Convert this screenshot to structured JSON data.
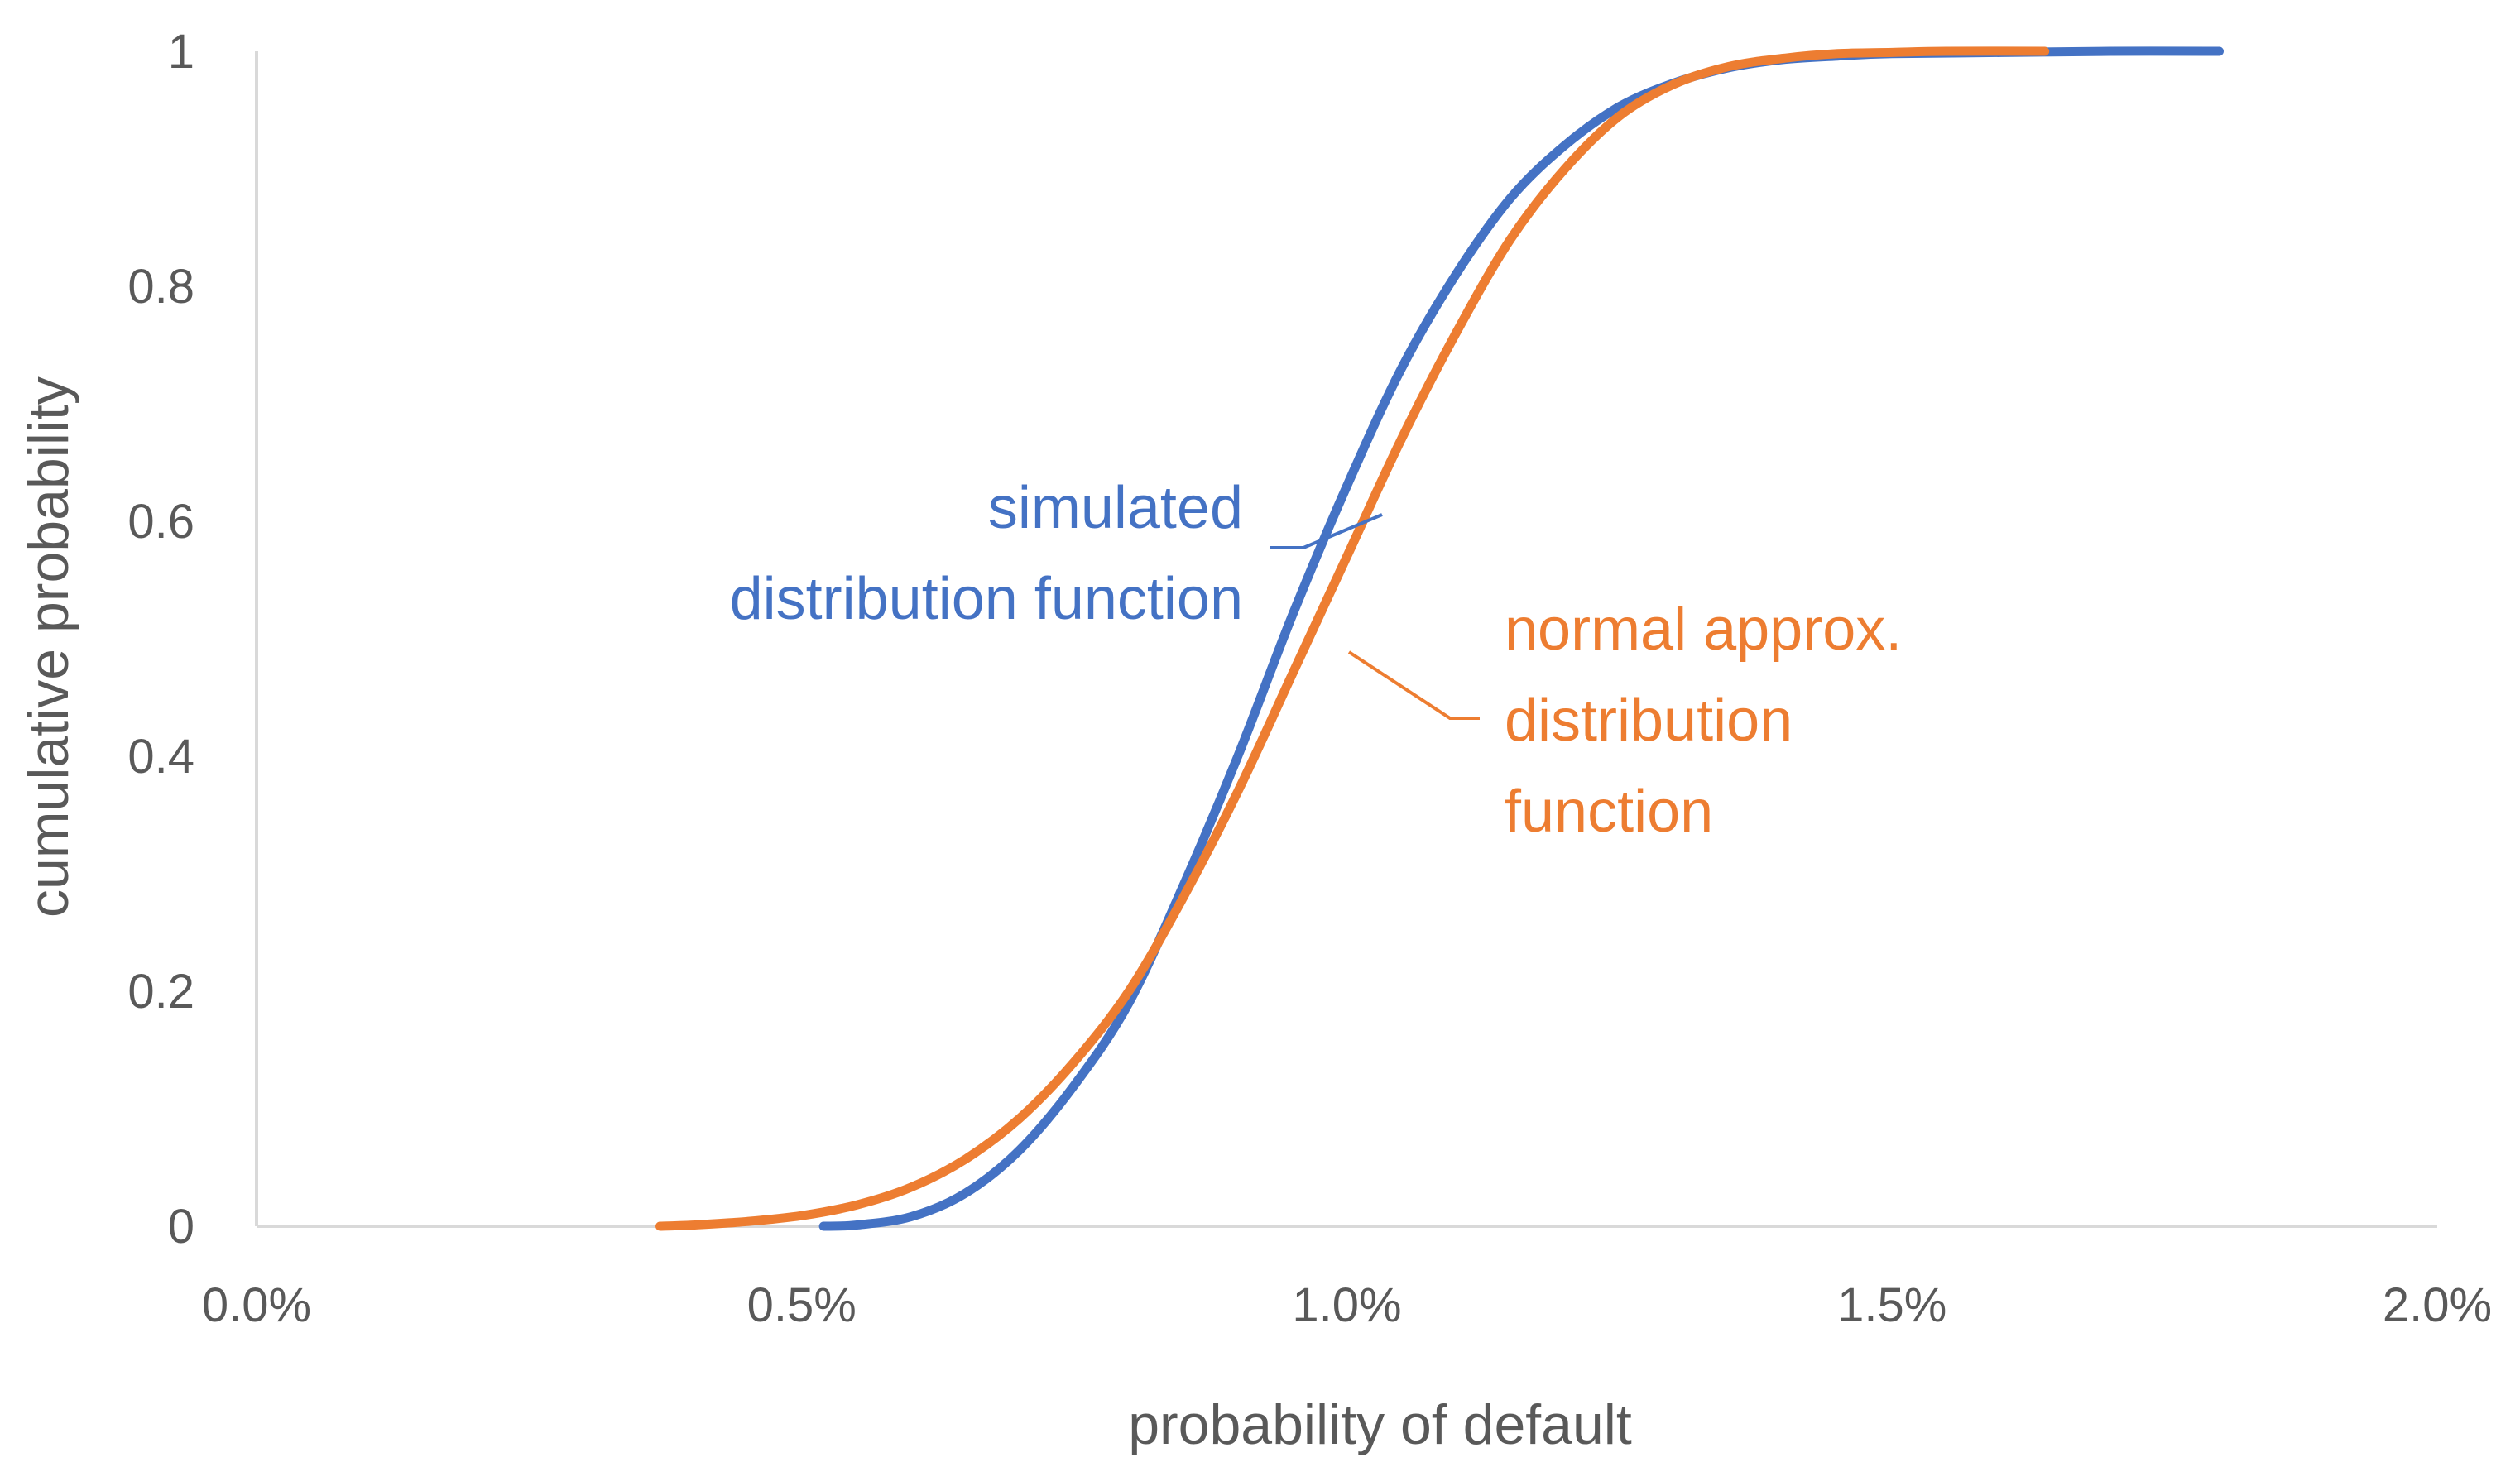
{
  "chart_data": {
    "type": "line",
    "title": "",
    "xlabel": "probability of default",
    "ylabel": "cumulative probability",
    "xlim": [
      0,
      0.02
    ],
    "ylim": [
      0,
      1
    ],
    "x_ticks": [
      0,
      0.005,
      0.01,
      0.015,
      0.02
    ],
    "x_tick_labels": [
      "0.0%",
      "0.5%",
      "1.0%",
      "1.5%",
      "2.0%"
    ],
    "y_ticks": [
      0,
      0.2,
      0.4,
      0.6,
      0.8,
      1
    ],
    "y_tick_labels": [
      "0",
      "0.2",
      "0.4",
      "0.6",
      "0.8",
      "1"
    ],
    "grid": false,
    "legend": "none",
    "series": [
      {
        "name": "simulated distribution function",
        "color": "#4472C4",
        "points": [
          [
            0.0052,
            0.0
          ],
          [
            0.0055,
            0.001
          ],
          [
            0.006,
            0.008
          ],
          [
            0.0065,
            0.028
          ],
          [
            0.007,
            0.065
          ],
          [
            0.0075,
            0.12
          ],
          [
            0.008,
            0.19
          ],
          [
            0.0085,
            0.29
          ],
          [
            0.009,
            0.4
          ],
          [
            0.0095,
            0.52
          ],
          [
            0.01,
            0.63
          ],
          [
            0.0105,
            0.73
          ],
          [
            0.011,
            0.81
          ],
          [
            0.0115,
            0.875
          ],
          [
            0.012,
            0.92
          ],
          [
            0.0125,
            0.953
          ],
          [
            0.013,
            0.973
          ],
          [
            0.0135,
            0.986
          ],
          [
            0.014,
            0.993
          ],
          [
            0.0145,
            0.996
          ],
          [
            0.015,
            0.998
          ],
          [
            0.016,
            0.999
          ],
          [
            0.017,
            1.0
          ],
          [
            0.018,
            1.0
          ]
        ]
      },
      {
        "name": "normal approx. distribution function",
        "color": "#ED7D31",
        "points": [
          [
            0.0037,
            0.0
          ],
          [
            0.004,
            0.001
          ],
          [
            0.0045,
            0.004
          ],
          [
            0.005,
            0.009
          ],
          [
            0.0055,
            0.018
          ],
          [
            0.006,
            0.033
          ],
          [
            0.0065,
            0.057
          ],
          [
            0.007,
            0.092
          ],
          [
            0.0075,
            0.14
          ],
          [
            0.008,
            0.2
          ],
          [
            0.0085,
            0.28
          ],
          [
            0.009,
            0.37
          ],
          [
            0.0095,
            0.47
          ],
          [
            0.01,
            0.57
          ],
          [
            0.0105,
            0.67
          ],
          [
            0.011,
            0.76
          ],
          [
            0.0115,
            0.84
          ],
          [
            0.012,
            0.9
          ],
          [
            0.0125,
            0.945
          ],
          [
            0.013,
            0.972
          ],
          [
            0.0135,
            0.987
          ],
          [
            0.014,
            0.994
          ],
          [
            0.0145,
            0.998
          ],
          [
            0.015,
            0.999
          ],
          [
            0.0155,
            1.0
          ],
          [
            0.0164,
            1.0
          ]
        ]
      }
    ],
    "annotations": [
      {
        "lines": [
          "simulated",
          "distribution function"
        ],
        "color": "#4472C4",
        "series": "simulated distribution function"
      },
      {
        "lines": [
          "normal approx.",
          "distribution",
          "function"
        ],
        "color": "#ED7D31",
        "series": "normal approx. distribution function"
      }
    ]
  }
}
